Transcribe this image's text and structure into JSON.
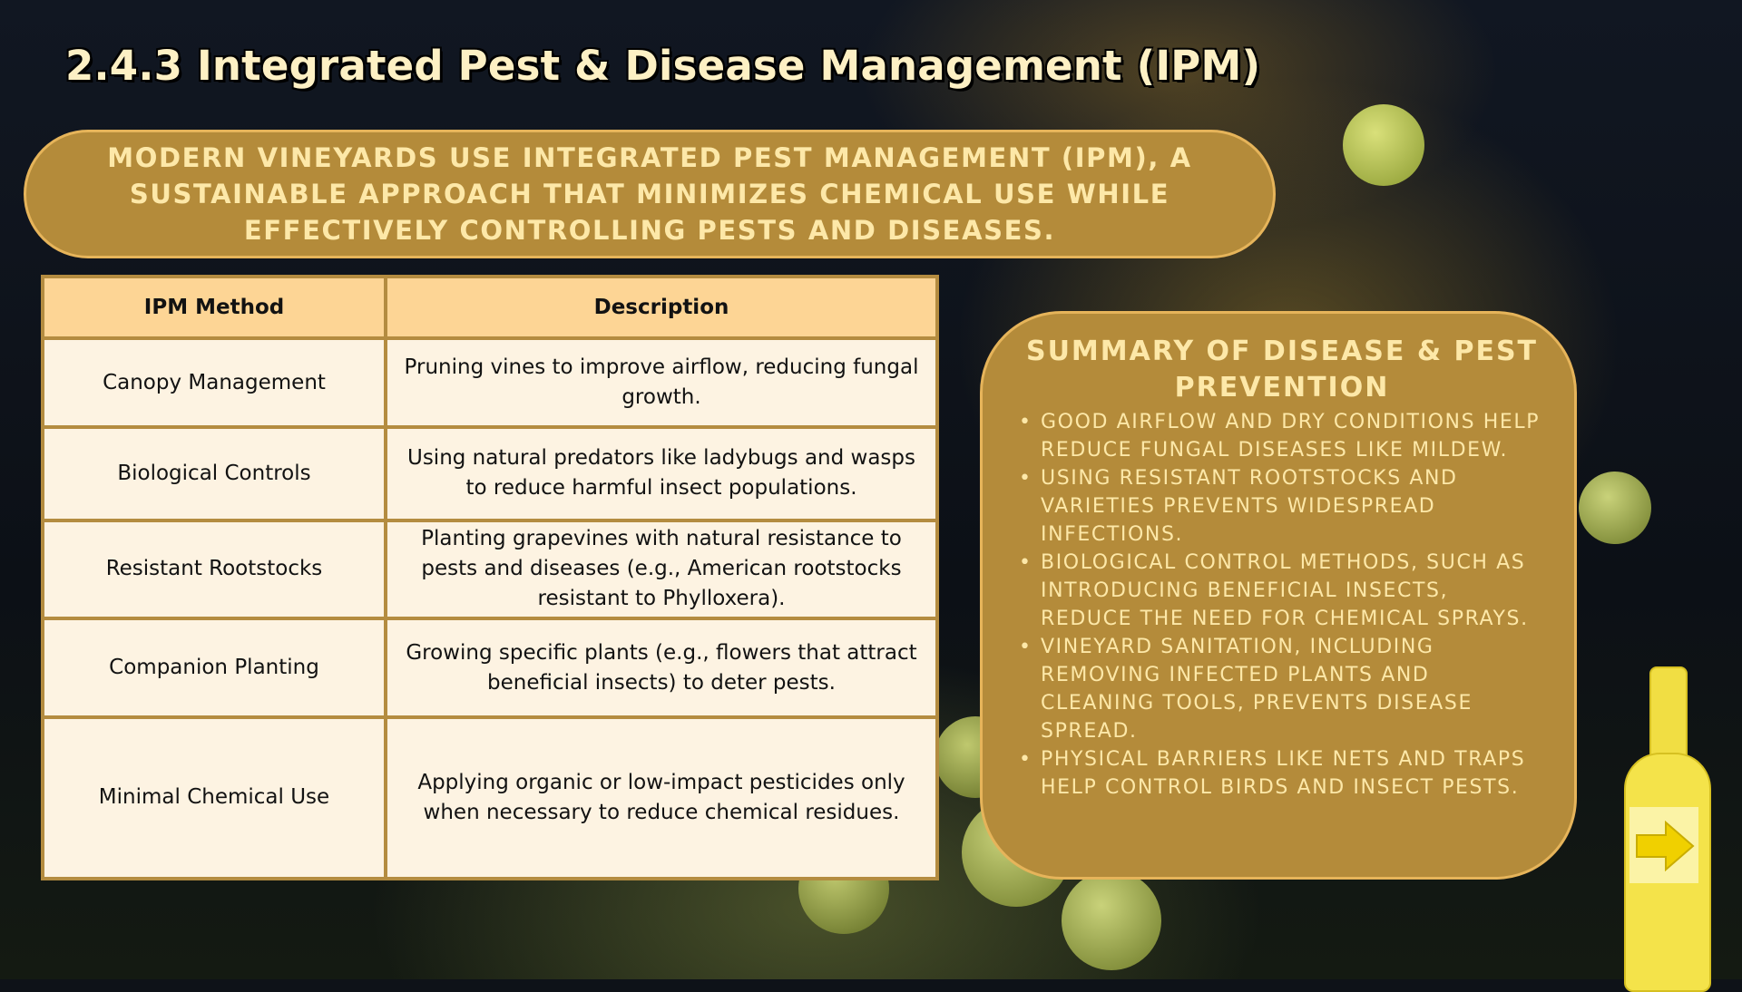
{
  "slide": {
    "title": "2.4.3 Integrated Pest & Disease Management (IPM)",
    "intro": "Modern vineyards use Integrated Pest Management (IPM), a sustainable approach that minimizes chemical use while effectively controlling pests and diseases."
  },
  "table": {
    "headers": [
      "IPM Method",
      "Description"
    ],
    "rows": [
      {
        "method": "Canopy Management",
        "description": "Pruning vines to improve airflow, reducing fungal growth."
      },
      {
        "method": "Biological Controls",
        "description": "Using natural predators like ladybugs and wasps to reduce harmful insect populations."
      },
      {
        "method": "Resistant Rootstocks",
        "description": "Planting grapevines with natural resistance to pests and diseases (e.g., American rootstocks resistant to Phylloxera)."
      },
      {
        "method": "Companion Planting",
        "description": "Growing specific plants (e.g., flowers that attract beneficial insects) to deter pests."
      },
      {
        "method": "Minimal Chemical Use",
        "description": "Applying organic or low-impact pesticides only when necessary to reduce chemical residues."
      }
    ]
  },
  "summary": {
    "heading": "Summary of Disease & Pest Prevention",
    "bullets": [
      "Good airflow and dry conditions help reduce fungal diseases like mildew.",
      "Using resistant rootstocks and varieties prevents widespread infections.",
      "Biological control methods, such as introducing beneficial insects, reduce the need for chemical sprays.",
      "Vineyard sanitation, including removing infected plants and cleaning tools, prevents disease spread.",
      "Physical barriers like nets and traps help control birds and insect pests."
    ]
  },
  "next_button": {
    "icon": "arrow-right-icon"
  }
}
